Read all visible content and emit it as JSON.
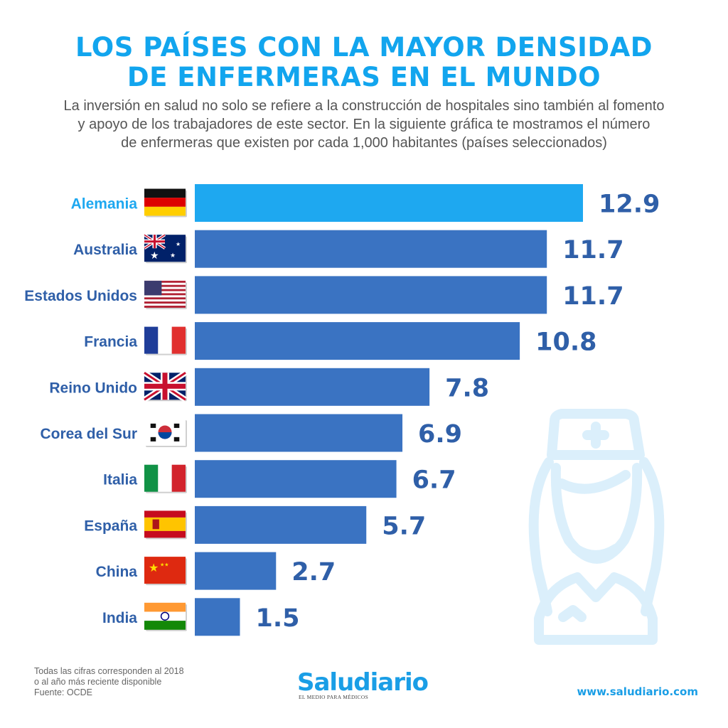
{
  "title_line1": "LOS PAÍSES CON LA MAYOR DENSIDAD",
  "title_line2": "DE ENFERMERAS EN EL MUNDO",
  "subtitle_line1": "La inversión en salud no solo se refiere a la construcción de hospitales sino también al fomento",
  "subtitle_line2": "y apoyo de los trabajadores de este sector. En la siguiente gráfica te mostramos el número",
  "subtitle_line3": "de enfermeras que existen por cada 1,000 habitantes (países seleccionados)",
  "colors": {
    "title": "#12a5ee",
    "highlight_bar": "#1ea8f0",
    "bar": "#3a73c2",
    "highlight_label": "#1ea8f0",
    "label": "#2f5fa8",
    "value": "#2f5fa8",
    "nurse_icon": "#dbeffb"
  },
  "chart_data": {
    "type": "bar",
    "orientation": "horizontal",
    "title": "LOS PAÍSES CON LA MAYOR DENSIDAD DE ENFERMERAS EN EL MUNDO",
    "xlabel": "",
    "ylabel": "",
    "unit": "enfermeras por cada 1,000 habitantes",
    "categories": [
      "Alemania",
      "Australia",
      "Estados Unidos",
      "Francia",
      "Reino Unido",
      "Corea del Sur",
      "Italia",
      "España",
      "China",
      "India"
    ],
    "values": [
      12.9,
      11.7,
      11.7,
      10.8,
      7.8,
      6.9,
      6.7,
      5.7,
      2.7,
      1.5
    ],
    "value_labels": [
      "12.9",
      "11.7",
      "11.7",
      "10.8",
      "7.8",
      "6.9",
      "6.7",
      "5.7",
      "2.7",
      "1.5"
    ],
    "flags": [
      "germany-flag",
      "australia-flag",
      "usa-flag",
      "france-flag",
      "uk-flag",
      "south-korea-flag",
      "italy-flag",
      "spain-flag",
      "china-flag",
      "india-flag"
    ],
    "highlight_index": 0,
    "xlim": [
      0,
      12.9
    ],
    "grid": false,
    "legend": "none"
  },
  "footnote": {
    "line1": "Todas las cifras corresponden al 2018",
    "line2": "o al año más reciente disponible",
    "line3": "Fuente: OCDE"
  },
  "logo": {
    "name": "Saludiario",
    "tagline": "EL MEDIO PARA MÉDICOS"
  },
  "website": "www.saludiario.com"
}
